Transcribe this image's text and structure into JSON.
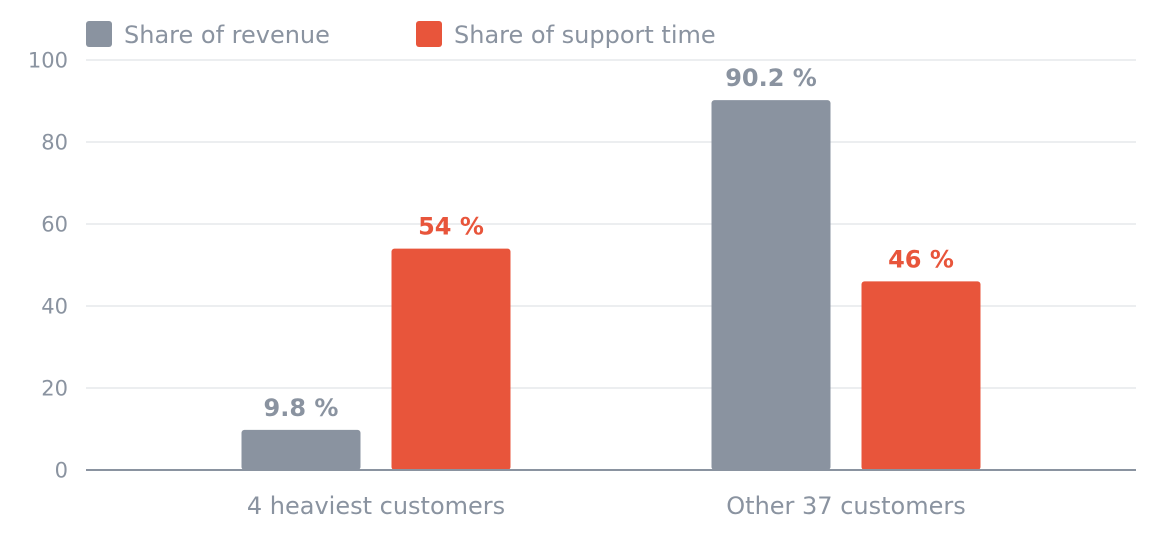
{
  "chart_data": {
    "type": "bar",
    "categories": [
      "4 heaviest customers",
      "Other 37 customers"
    ],
    "series": [
      {
        "name": "Share of revenue",
        "color": "#8a93a0",
        "values": [
          9.8,
          90.2
        ],
        "labels": [
          "9.8 %",
          "90.2 %"
        ]
      },
      {
        "name": "Share of support time",
        "color": "#e8553b",
        "values": [
          54,
          46
        ],
        "labels": [
          "54 %",
          "46 %"
        ]
      }
    ],
    "ylim": [
      0,
      100
    ],
    "yticks": [
      "0",
      "20",
      "40",
      "60",
      "80",
      "100"
    ],
    "ytick_values": [
      0,
      20,
      40,
      60,
      80,
      100
    ],
    "grid": true,
    "legend_position": "top-left",
    "xlabel": "",
    "ylabel": "",
    "colors": {
      "text": "#8a93a0",
      "grid": "#e6e8eb",
      "axis": "#8a93a0"
    }
  }
}
